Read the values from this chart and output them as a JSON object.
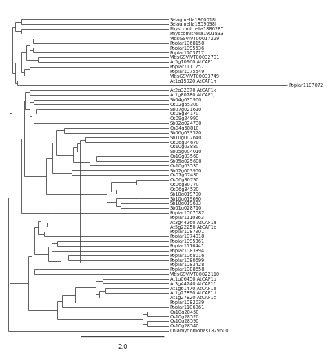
{
  "scale_label": "2.0",
  "bg": "#ffffff",
  "lc": "#444444",
  "tc": "#222222",
  "fs": 4.8,
  "lw": 0.6,
  "fig_w": 4.68,
  "fig_h": 5.0,
  "taxa_order": [
    "Selaginella1860018I",
    "Selaginella1859698I",
    "Physcomitrella1886285",
    "Physcomitrella1901833",
    "VitisGSVIVT00017229",
    "Poplar1068158",
    "Poplar1095536",
    "Poplar1103717",
    "VitisGSVIVT00032701",
    "At5g10960 AtCAF1i",
    "Poplar1111257",
    "Poplar1075549",
    "VitisGSVIVT00033749",
    "At1g15920 AtCAF1h",
    "Poplar1107072",
    "At2g32070 AtCAF1k",
    "At1g80780 AtCAF1j",
    "Sb04g035960",
    "Os02g55300",
    "Sb07g021610",
    "Os08g34170",
    "Os09g24990",
    "Sb02g024730",
    "Os04g58810",
    "Sb06g033520",
    "Sb10g002640",
    "Os06g04670",
    "Os10g03880",
    "Sb05g004010",
    "Os10g03560",
    "Sb05g025600",
    "Os10g03530",
    "Sb02g003950",
    "Os07g07430",
    "Os06g30790",
    "Os06g30770",
    "Os06g34520",
    "Sb10g019700",
    "Sb10g019690",
    "Sb10g019693",
    "Sb01g028710",
    "Poplar1067682",
    "Poplar1110363",
    "At3g44260 AtCAF1a",
    "At5g22250 AtCAF1b",
    "Poplar1087901",
    "Poplar1074018",
    "Poplar1095361",
    "Poplar1116441",
    "Poplar1083894",
    "Poplar1068016",
    "Poplar1080699",
    "Poplar1083428",
    "Poplar1088658",
    "VitisGSVIVT00022110",
    "At1g06450 AtCAF1g",
    "At3g44240 AtCAF1f",
    "At1g61470 AtCAF1e",
    "At1g27890 AtCAF1d",
    "At1g27820 AtCAF1c",
    "Poplar1082039",
    "Poplar1106061",
    "Os10g28450",
    "Os10g28520",
    "Os10g28590",
    "Os10g28540",
    "Chlamydomonas1829600"
  ]
}
